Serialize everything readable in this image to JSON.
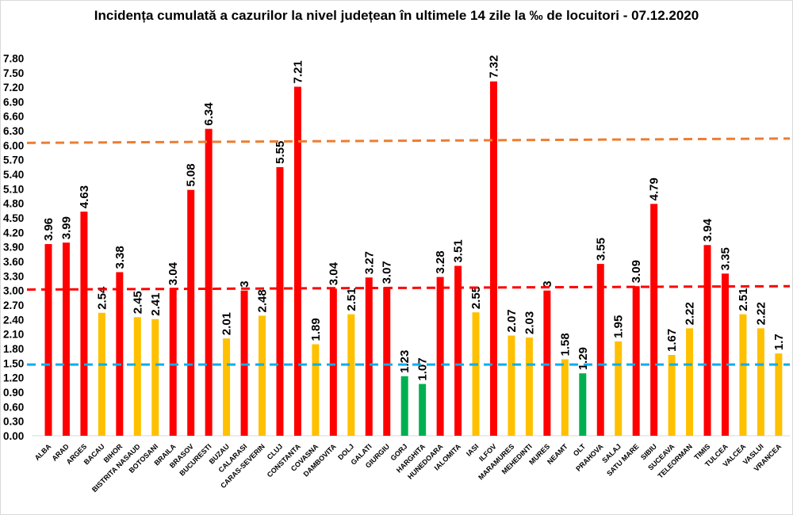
{
  "chart_data": {
    "type": "bar",
    "title": "Incidența cumulată a cazurilor la nivel județean în ultimele 14 zile la ‰ de locuitori - 07.12.2020",
    "xlabel": "",
    "ylabel": "",
    "ylim": [
      0,
      7.8
    ],
    "ytick_step": 0.3,
    "grid": false,
    "legend": "none",
    "categories": [
      "ALBA",
      "ARAD",
      "ARGES",
      "BACAU",
      "BIHOR",
      "BISTRITA NASAUD",
      "BOTOSANI",
      "BRAILA",
      "BRASOV",
      "BUCURESTI",
      "BUZAU",
      "CALARASI",
      "CARAS-SEVERIN",
      "CLUJ",
      "CONSTANTA",
      "COVASNA",
      "DAMBOVITA",
      "DOLJ",
      "GALATI",
      "GIURGIU",
      "GORJ",
      "HARGHITA",
      "HUNEDOARA",
      "IALOMITA",
      "IASI",
      "ILFOV",
      "MARAMURES",
      "MEHEDINTI",
      "MURES",
      "NEAMT",
      "OLT",
      "PRAHOVA",
      "SALAJ",
      "SATU MARE",
      "SIBIU",
      "SUCEAVA",
      "TELEORMAN",
      "TIMIS",
      "TULCEA",
      "VALCEA",
      "VASLUI",
      "VRANCEA"
    ],
    "values": [
      3.96,
      3.99,
      4.63,
      2.54,
      3.38,
      2.45,
      2.41,
      3.04,
      5.08,
      6.34,
      2.01,
      3,
      2.48,
      5.55,
      7.21,
      1.89,
      3.04,
      2.51,
      3.27,
      3.07,
      1.23,
      1.07,
      3.28,
      3.51,
      2.55,
      7.32,
      2.07,
      2.03,
      3,
      1.58,
      1.29,
      3.55,
      1.95,
      3.09,
      4.79,
      1.67,
      2.22,
      3.94,
      3.35,
      2.51,
      2.22,
      1.7
    ],
    "data_labels": [
      "3.96",
      "3.99",
      "4.63",
      "2.54",
      "3.38",
      "2.45",
      "2.41",
      "3.04",
      "5.08",
      "6.34",
      "2.01",
      "3",
      "2.48",
      "5.55",
      "7.21",
      "1.89",
      "3.04",
      "2.51",
      "3.27",
      "3.07",
      "1.23",
      "1.07",
      "3.28",
      "3.51",
      "2.55",
      "7.32",
      "2.07",
      "2.03",
      "3",
      "1.58",
      "1.29",
      "3.55",
      "1.95",
      "3.09",
      "4.79",
      "1.67",
      "2.22",
      "3.94",
      "3.35",
      "2.51",
      "2.22",
      "1.7"
    ],
    "bar_colors": {
      "red": "#FF0000",
      "yellow": "#FFC000",
      "green": "#00B050"
    },
    "reference_lines": [
      {
        "color": "#ED7D31",
        "style": "dashed",
        "start": 6.05,
        "end": 6.14
      },
      {
        "color": "#FF0000",
        "style": "dashed",
        "start": 3.02,
        "end": 3.09
      },
      {
        "color": "#00B0F0",
        "style": "dashed",
        "start": 1.47,
        "end": 1.47
      }
    ]
  }
}
